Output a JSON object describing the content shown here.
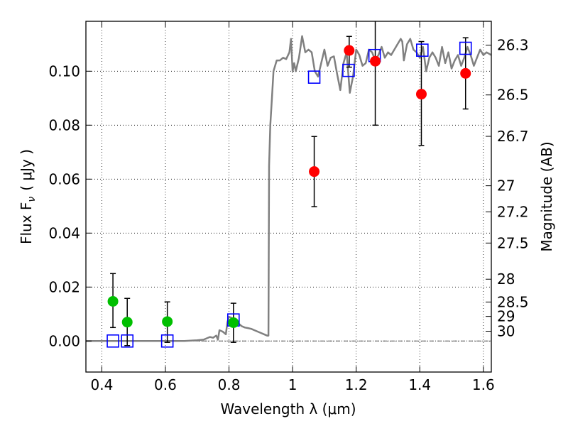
{
  "chart_data": {
    "type": "scatter",
    "xlabel": "Wavelength  λ (μm)",
    "ylabel": "Flux  F",
    "ylabel_sub": "ν",
    "ylabel_unit": "( μJy )",
    "y2label": "Magnitude (AB)",
    "xlim": [
      0.35,
      1.625
    ],
    "ylim": [
      -0.0115,
      0.1185
    ],
    "grid": true,
    "x_ticks": [
      0.4,
      0.6,
      0.8,
      1.0,
      1.2,
      1.4,
      1.6
    ],
    "x_tick_labels": [
      "0.4",
      "0.6",
      "0.8",
      "1",
      "1.2",
      "1.4",
      "1.6"
    ],
    "y_ticks": [
      0.0,
      0.02,
      0.04,
      0.06,
      0.08,
      0.1
    ],
    "y_tick_labels": [
      "0.00",
      "0.02",
      "0.04",
      "0.06",
      "0.08",
      "0.10"
    ],
    "mag_ticks": [
      26.3,
      26.5,
      26.7,
      27,
      27.2,
      27.5,
      28,
      28.5,
      29,
      30
    ],
    "mag_tick_labels": [
      "26.3",
      "26.5",
      "26.7",
      "27",
      "27.2",
      "27.5",
      "28",
      "28.5",
      "29",
      "30"
    ],
    "series": [
      {
        "name": "Model spectrum",
        "kind": "line",
        "color": "#808080",
        "points": [
          [
            0.35,
            0.0
          ],
          [
            0.5,
            0.0
          ],
          [
            0.6,
            0.0
          ],
          [
            0.66,
            0.0
          ],
          [
            0.7,
            0.0003
          ],
          [
            0.72,
            0.0005
          ],
          [
            0.74,
            0.0015
          ],
          [
            0.75,
            0.0012
          ],
          [
            0.76,
            0.002
          ],
          [
            0.765,
            0.0005
          ],
          [
            0.77,
            0.004
          ],
          [
            0.78,
            0.0035
          ],
          [
            0.79,
            0.0025
          ],
          [
            0.795,
            0.007
          ],
          [
            0.8,
            0.009
          ],
          [
            0.81,
            0.0085
          ],
          [
            0.82,
            0.008
          ],
          [
            0.83,
            0.0065
          ],
          [
            0.84,
            0.0055
          ],
          [
            0.85,
            0.005
          ],
          [
            0.86,
            0.0048
          ],
          [
            0.87,
            0.0045
          ],
          [
            0.88,
            0.004
          ],
          [
            0.89,
            0.0035
          ],
          [
            0.9,
            0.003
          ],
          [
            0.91,
            0.0025
          ],
          [
            0.92,
            0.002
          ],
          [
            0.924,
            0.002
          ],
          [
            0.926,
            0.065
          ],
          [
            0.93,
            0.08
          ],
          [
            0.935,
            0.09
          ],
          [
            0.94,
            0.1
          ],
          [
            0.95,
            0.104
          ],
          [
            0.96,
            0.104
          ],
          [
            0.97,
            0.105
          ],
          [
            0.98,
            0.1045
          ],
          [
            0.99,
            0.107
          ],
          [
            0.995,
            0.112
          ],
          [
            1.0,
            0.1
          ],
          [
            1.005,
            0.103
          ],
          [
            1.01,
            0.1
          ],
          [
            1.02,
            0.105
          ],
          [
            1.03,
            0.113
          ],
          [
            1.04,
            0.107
          ],
          [
            1.05,
            0.108
          ],
          [
            1.06,
            0.107
          ],
          [
            1.07,
            0.1
          ],
          [
            1.08,
            0.098
          ],
          [
            1.09,
            0.103
          ],
          [
            1.1,
            0.108
          ],
          [
            1.11,
            0.102
          ],
          [
            1.12,
            0.105
          ],
          [
            1.13,
            0.1055
          ],
          [
            1.14,
            0.099
          ],
          [
            1.15,
            0.093
          ],
          [
            1.16,
            0.103
          ],
          [
            1.17,
            0.107
          ],
          [
            1.18,
            0.092
          ],
          [
            1.19,
            0.098
          ],
          [
            1.2,
            0.108
          ],
          [
            1.21,
            0.106
          ],
          [
            1.22,
            0.102
          ],
          [
            1.23,
            0.103
          ],
          [
            1.24,
            0.108
          ],
          [
            1.25,
            0.107
          ],
          [
            1.26,
            0.104
          ],
          [
            1.27,
            0.106
          ],
          [
            1.28,
            0.109
          ],
          [
            1.29,
            0.105
          ],
          [
            1.3,
            0.107
          ],
          [
            1.31,
            0.106
          ],
          [
            1.32,
            0.108
          ],
          [
            1.33,
            0.11
          ],
          [
            1.34,
            0.112
          ],
          [
            1.345,
            0.111
          ],
          [
            1.35,
            0.104
          ],
          [
            1.36,
            0.11
          ],
          [
            1.37,
            0.112
          ],
          [
            1.38,
            0.108
          ],
          [
            1.39,
            0.107
          ],
          [
            1.4,
            0.105
          ],
          [
            1.41,
            0.109
          ],
          [
            1.42,
            0.1
          ],
          [
            1.43,
            0.105
          ],
          [
            1.44,
            0.107
          ],
          [
            1.45,
            0.105
          ],
          [
            1.46,
            0.102
          ],
          [
            1.47,
            0.109
          ],
          [
            1.48,
            0.103
          ],
          [
            1.49,
            0.107
          ],
          [
            1.5,
            0.101
          ],
          [
            1.51,
            0.104
          ],
          [
            1.52,
            0.106
          ],
          [
            1.53,
            0.102
          ],
          [
            1.54,
            0.105
          ],
          [
            1.55,
            0.109
          ],
          [
            1.56,
            0.106
          ],
          [
            1.57,
            0.102
          ],
          [
            1.58,
            0.105
          ],
          [
            1.59,
            0.108
          ],
          [
            1.6,
            0.106
          ],
          [
            1.61,
            0.107
          ],
          [
            1.625,
            0.106
          ]
        ]
      },
      {
        "name": "Model band fluxes",
        "kind": "marker",
        "marker": "square",
        "color": "#0000ff",
        "points": [
          [
            0.435,
            0.0
          ],
          [
            0.48,
            0.0
          ],
          [
            0.606,
            0.0
          ],
          [
            0.814,
            0.0078
          ],
          [
            1.068,
            0.0978
          ],
          [
            1.176,
            0.1003
          ],
          [
            1.258,
            0.1058
          ],
          [
            1.408,
            0.1078
          ],
          [
            1.544,
            0.1085
          ]
        ]
      },
      {
        "name": "Observed (red)",
        "kind": "marker",
        "marker": "circle",
        "color": "#ff0000",
        "points": [
          [
            1.068,
            0.0628
          ],
          [
            1.178,
            0.1077
          ],
          [
            1.26,
            0.1037
          ],
          [
            1.405,
            0.0915
          ],
          [
            1.544,
            0.0992
          ]
        ],
        "err_low": [
          0.013,
          0.0062,
          0.0237,
          0.019,
          0.0132
        ],
        "err_high": [
          0.013,
          0.0052,
          0.0225,
          0.0195,
          0.0132
        ]
      },
      {
        "name": "Observed (green)",
        "kind": "marker",
        "marker": "circle",
        "color": "#00bf00",
        "points": [
          [
            0.435,
            0.0147
          ],
          [
            0.48,
            0.007
          ],
          [
            0.606,
            0.0072
          ],
          [
            0.814,
            0.0068
          ]
        ],
        "err_low": [
          0.0097,
          0.0087,
          0.0077,
          0.0073
        ],
        "err_high": [
          0.0103,
          0.0088,
          0.0073,
          0.0072
        ]
      }
    ]
  }
}
